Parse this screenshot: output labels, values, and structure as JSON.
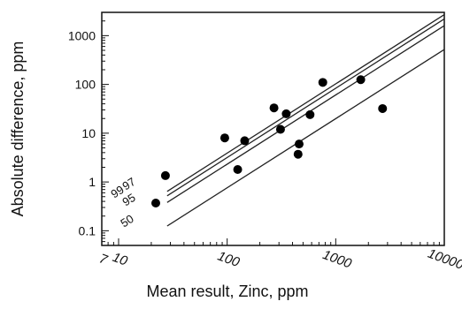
{
  "chart_data": {
    "type": "scatter",
    "xlabel": "Mean result, Zinc, ppm",
    "ylabel": "Absolute difference, ppm",
    "x_scale": "log",
    "y_scale": "log",
    "xlim": [
      7,
      10000
    ],
    "ylim": [
      0.05,
      3000
    ],
    "x_ticks": [
      {
        "value": 7,
        "label": "7"
      },
      {
        "value": 10,
        "label": "10"
      },
      {
        "value": 100,
        "label": "100"
      },
      {
        "value": 1000,
        "label": "1000"
      },
      {
        "value": 10000,
        "label": "10000"
      }
    ],
    "y_ticks": [
      {
        "value": 0.1,
        "label": "0.1"
      },
      {
        "value": 1,
        "label": "1"
      },
      {
        "value": 10,
        "label": "10"
      },
      {
        "value": 100,
        "label": "100"
      },
      {
        "value": 1000,
        "label": "1000"
      }
    ],
    "points": [
      {
        "x": 22,
        "y": 0.37
      },
      {
        "x": 27,
        "y": 1.35
      },
      {
        "x": 95,
        "y": 8
      },
      {
        "x": 125,
        "y": 1.8
      },
      {
        "x": 145,
        "y": 7
      },
      {
        "x": 270,
        "y": 33
      },
      {
        "x": 310,
        "y": 12
      },
      {
        "x": 350,
        "y": 25
      },
      {
        "x": 450,
        "y": 3.7
      },
      {
        "x": 460,
        "y": 6
      },
      {
        "x": 580,
        "y": 24
      },
      {
        "x": 760,
        "y": 110
      },
      {
        "x": 1700,
        "y": 125
      },
      {
        "x": 2700,
        "y": 32
      }
    ],
    "reference_lines": [
      {
        "label": "99",
        "x_range": [
          28,
          10000
        ],
        "y_range": [
          0.52,
          2200
        ]
      },
      {
        "label": "97",
        "x_range": [
          28,
          10000
        ],
        "y_range": [
          0.64,
          2700
        ]
      },
      {
        "label": "95",
        "x_range": [
          28,
          10000
        ],
        "y_range": [
          0.38,
          1600
        ]
      },
      {
        "label": "50",
        "x_range": [
          28,
          10000
        ],
        "y_range": [
          0.125,
          520
        ]
      }
    ],
    "grid": false
  }
}
